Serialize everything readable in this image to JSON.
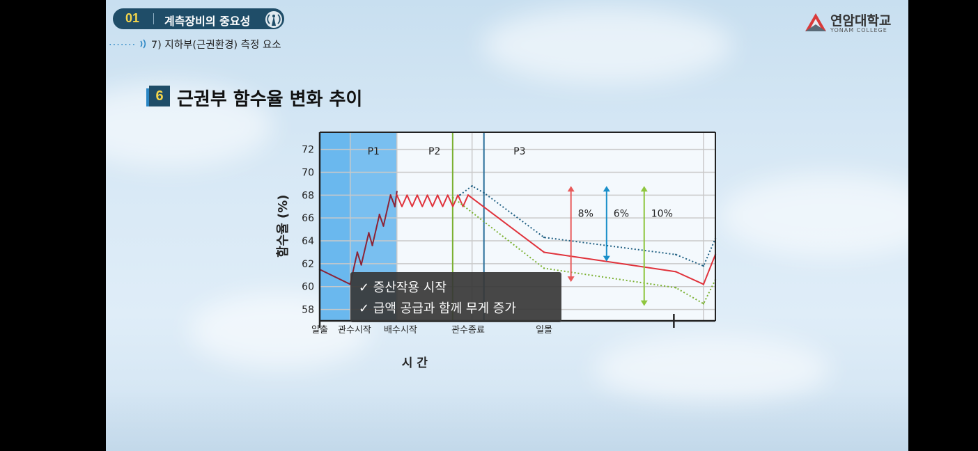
{
  "header": {
    "badge_number": "01",
    "badge_title": "계측장비의 중요성",
    "subtitle_dots": "·······",
    "subtitle": "7) 지하부(근권환경) 측정 요소"
  },
  "logo": {
    "name": "연암대학교",
    "sub": "YONAM COLLEGE"
  },
  "section": {
    "number": "6",
    "title": "근권부 함수율 변화 추이"
  },
  "tooltip": {
    "line1": "✓ 증산작용 시작",
    "line2": "✓ 급액 공급과 함께 무게 증가"
  },
  "chart_data": {
    "type": "line",
    "ylabel": "함수율 (%)",
    "xlabel": "시  간",
    "ylim": [
      57,
      73.5
    ],
    "xlim": [
      0,
      100
    ],
    "yticks": [
      58,
      60,
      62,
      64,
      66,
      68,
      70,
      72
    ],
    "grid": true,
    "phases": [
      {
        "label": "P1",
        "x_start": 7.7,
        "x_end": 19.5,
        "color": "#79bff0"
      },
      {
        "label": "P2",
        "x_start": 19.5,
        "x_end": 38.5
      },
      {
        "label": "P3",
        "x_start": 38.5,
        "x_end": 100
      }
    ],
    "irrigation_zone": {
      "x_start": 0,
      "x_end": 7.7,
      "color": "#6ab8ee"
    },
    "time_labels": [
      {
        "label": "일출",
        "x": 0
      },
      {
        "label": "관수시작",
        "x": 8.8
      },
      {
        "label": "배수시작",
        "x": 20.4
      },
      {
        "label": "관수종료",
        "x": 37.5
      },
      {
        "label": "일몰",
        "x": 56.7
      }
    ],
    "vlines": [
      {
        "x": 33.6,
        "color": "#7ab030"
      },
      {
        "x": 41.5,
        "color": "#2a6f9a"
      }
    ],
    "series": [
      {
        "color": "#8b2336",
        "style": "solid",
        "x": [
          0,
          7.7,
          9.5,
          10.5,
          12.4,
          13.3,
          15.1,
          16.1,
          17.9,
          19.0,
          19.5
        ],
        "y": [
          61.5,
          60.2,
          63.0,
          61.9,
          64.7,
          63.6,
          66.3,
          65.3,
          68.0,
          67.0,
          68.3
        ]
      },
      {
        "color": "#e0323b",
        "style": "solid",
        "x": [
          19.5,
          37.5,
          56.7,
          90.0,
          97.0,
          100
        ],
        "y": [
          68.0,
          68.0,
          63.0,
          61.3,
          60.2,
          62.8
        ]
      },
      {
        "color": "#1f5f82",
        "style": "dotted",
        "x": [
          35.4,
          38.5,
          41.5,
          56.7,
          90.0,
          97.0,
          100
        ],
        "y": [
          68.0,
          68.8,
          68.2,
          64.3,
          62.8,
          61.8,
          64.2
        ]
      },
      {
        "color": "#7ab030",
        "style": "dotted",
        "x": [
          33.6,
          56.7,
          90.0,
          97.0,
          100
        ],
        "y": [
          67.8,
          61.6,
          59.9,
          58.5,
          60.6
        ]
      }
    ],
    "annotations": [
      {
        "label": "8%",
        "x": 63.5,
        "y_from": 60.4,
        "y_to": 68.8,
        "color": "#e85a5a"
      },
      {
        "label": "6%",
        "x": 72.5,
        "y_from": 62.2,
        "y_to": 68.8,
        "color": "#1a8fc9"
      },
      {
        "label": "10%",
        "x": 82.0,
        "y_from": 58.3,
        "y_to": 68.8,
        "color": "#8ec63f"
      }
    ]
  }
}
